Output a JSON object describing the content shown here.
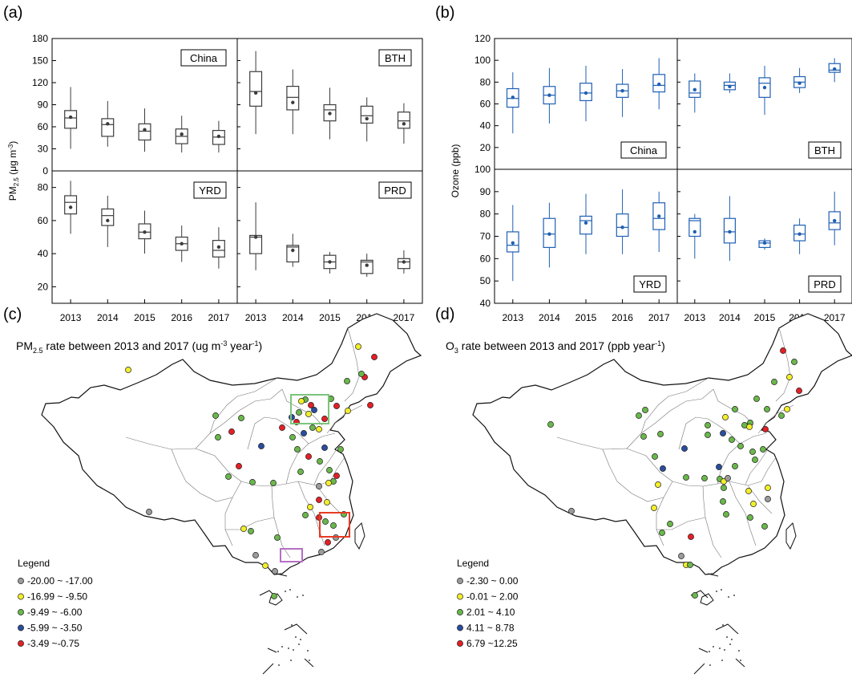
{
  "panel_labels": {
    "a": "(a)",
    "b": "(b)",
    "c": "(c)",
    "d": "(d)"
  },
  "years": [
    "2013",
    "2014",
    "2015",
    "2016",
    "2017"
  ],
  "colors": {
    "pm": "#3c3c3c",
    "ozone": "#1f5fb4",
    "grey": "#9b9b9b",
    "yellow": "#f2ee2a",
    "green": "#6ab74b",
    "blue": "#2a4e9e",
    "red": "#e41f26",
    "bth_box": "#7cc47c",
    "yrd_box": "#e83b24",
    "prd_box": "#b56fc6"
  },
  "chart_data": [
    {
      "type": "box",
      "panel": "(a)",
      "ylabel_main": "PM",
      "ylabel_sub": "2.5",
      "ylabel_unit": " (μg m",
      "ylabel_exp": "-3",
      "ylabel_close": ")",
      "subplots": [
        {
          "name": "China",
          "ylim": [
            0,
            180
          ],
          "ticks": [
            0,
            30,
            60,
            90,
            120,
            150,
            180
          ],
          "boxes": [
            {
              "whislo": 30,
              "q1": 58,
              "med": 72,
              "q3": 82,
              "whishi": 114,
              "mean": 73
            },
            {
              "whislo": 33,
              "q1": 47,
              "med": 63,
              "q3": 71,
              "whishi": 95,
              "mean": 64
            },
            {
              "whislo": 26,
              "q1": 42,
              "med": 54,
              "q3": 64,
              "whishi": 85,
              "mean": 56
            },
            {
              "whislo": 25,
              "q1": 37,
              "med": 47,
              "q3": 57,
              "whishi": 75,
              "mean": 50
            },
            {
              "whislo": 25,
              "q1": 36,
              "med": 46,
              "q3": 55,
              "whishi": 68,
              "mean": 47
            }
          ]
        },
        {
          "name": "BTH",
          "ylim": [
            0,
            180
          ],
          "ticks": [
            0,
            30,
            60,
            90,
            120,
            150,
            180
          ],
          "boxes": [
            {
              "whislo": 50,
              "q1": 88,
              "med": 108,
              "q3": 135,
              "whishi": 163,
              "mean": 106
            },
            {
              "whislo": 50,
              "q1": 83,
              "med": 100,
              "q3": 115,
              "whishi": 138,
              "mean": 93
            },
            {
              "whislo": 43,
              "q1": 68,
              "med": 83,
              "q3": 90,
              "whishi": 113,
              "mean": 78
            },
            {
              "whislo": 40,
              "q1": 65,
              "med": 75,
              "q3": 88,
              "whishi": 100,
              "mean": 71
            },
            {
              "whislo": 37,
              "q1": 58,
              "med": 68,
              "q3": 80,
              "whishi": 92,
              "mean": 64
            }
          ]
        },
        {
          "name": "YRD",
          "ylim": [
            10,
            90
          ],
          "ticks": [
            20,
            40,
            60,
            80
          ],
          "boxes": [
            {
              "whislo": 52,
              "q1": 64,
              "med": 71,
              "q3": 75,
              "whishi": 84,
              "mean": 68
            },
            {
              "whislo": 44,
              "q1": 57,
              "med": 63,
              "q3": 67,
              "whishi": 75,
              "mean": 60
            },
            {
              "whislo": 40,
              "q1": 49,
              "med": 53,
              "q3": 58,
              "whishi": 66,
              "mean": 53
            },
            {
              "whislo": 35,
              "q1": 42,
              "med": 46,
              "q3": 50,
              "whishi": 57,
              "mean": 46
            },
            {
              "whislo": 31,
              "q1": 38,
              "med": 42,
              "q3": 48,
              "whishi": 56,
              "mean": 44
            }
          ]
        },
        {
          "name": "PRD",
          "ylim": [
            10,
            90
          ],
          "ticks": [
            20,
            40,
            60,
            80
          ],
          "boxes": [
            {
              "whislo": 30,
              "q1": 40,
              "med": 50,
              "q3": 51,
              "whishi": 71,
              "mean": 50
            },
            {
              "whislo": 32,
              "q1": 35,
              "med": 44,
              "q3": 45,
              "whishi": 52,
              "mean": 42
            },
            {
              "whislo": 28,
              "q1": 31,
              "med": 35,
              "q3": 39,
              "whishi": 41,
              "mean": 35
            },
            {
              "whislo": 26,
              "q1": 28,
              "med": 35,
              "q3": 36,
              "whishi": 40,
              "mean": 33
            },
            {
              "whislo": 28,
              "q1": 31,
              "med": 35,
              "q3": 37,
              "whishi": 42,
              "mean": 35
            }
          ]
        }
      ]
    },
    {
      "type": "box",
      "panel": "(b)",
      "ylabel_main": "Ozone (ppb)",
      "subplots": [
        {
          "name": "China",
          "ylim": [
            0,
            120
          ],
          "ticks": [
            20,
            40,
            60,
            80,
            100,
            120
          ],
          "boxes": [
            {
              "whislo": 33,
              "q1": 57,
              "med": 65,
              "q3": 74,
              "whishi": 89,
              "mean": 66
            },
            {
              "whislo": 42,
              "q1": 60,
              "med": 68,
              "q3": 76,
              "whishi": 93,
              "mean": 68
            },
            {
              "whislo": 44,
              "q1": 63,
              "med": 70,
              "q3": 79,
              "whishi": 95,
              "mean": 70
            },
            {
              "whislo": 48,
              "q1": 66,
              "med": 72,
              "q3": 78,
              "whishi": 92,
              "mean": 72
            },
            {
              "whislo": 55,
              "q1": 71,
              "med": 77,
              "q3": 87,
              "whishi": 102,
              "mean": 78
            }
          ]
        },
        {
          "name": "BTH",
          "ylim": [
            0,
            120
          ],
          "ticks": [
            20,
            40,
            60,
            80,
            100,
            120
          ],
          "boxes": [
            {
              "whislo": 52,
              "q1": 66,
              "med": 70,
              "q3": 81,
              "whishi": 88,
              "mean": 73
            },
            {
              "whislo": 70,
              "q1": 73,
              "med": 77,
              "q3": 80,
              "whishi": 88,
              "mean": 76
            },
            {
              "whislo": 50,
              "q1": 66,
              "med": 79,
              "q3": 84,
              "whishi": 95,
              "mean": 75
            },
            {
              "whislo": 70,
              "q1": 75,
              "med": 80,
              "q3": 85,
              "whishi": 93,
              "mean": 79
            },
            {
              "whislo": 80,
              "q1": 89,
              "med": 91,
              "q3": 97,
              "whishi": 102,
              "mean": 92
            }
          ]
        },
        {
          "name": "YRD",
          "ylim": [
            40,
            100
          ],
          "ticks": [
            40,
            50,
            60,
            70,
            80,
            90,
            100
          ],
          "boxes": [
            {
              "whislo": 50,
              "q1": 63,
              "med": 66,
              "q3": 72,
              "whishi": 84,
              "mean": 67
            },
            {
              "whislo": 56,
              "q1": 65,
              "med": 71,
              "q3": 78,
              "whishi": 85,
              "mean": 71
            },
            {
              "whislo": 62,
              "q1": 71,
              "med": 77,
              "q3": 79,
              "whishi": 89,
              "mean": 76
            },
            {
              "whislo": 62,
              "q1": 70,
              "med": 74,
              "q3": 80,
              "whishi": 91,
              "mean": 74
            },
            {
              "whislo": 63,
              "q1": 73,
              "med": 78,
              "q3": 85,
              "whishi": 90,
              "mean": 79
            }
          ]
        },
        {
          "name": "PRD",
          "ylim": [
            40,
            100
          ],
          "ticks": [
            40,
            50,
            60,
            70,
            80,
            90,
            100
          ],
          "boxes": [
            {
              "whislo": 60,
              "q1": 70,
              "med": 77,
              "q3": 78,
              "whishi": 80,
              "mean": 72
            },
            {
              "whislo": 59,
              "q1": 67,
              "med": 72,
              "q3": 78,
              "whishi": 88,
              "mean": 72
            },
            {
              "whislo": 64,
              "q1": 65,
              "med": 67,
              "q3": 68,
              "whishi": 69,
              "mean": 67
            },
            {
              "whislo": 62,
              "q1": 68,
              "med": 71,
              "q3": 75,
              "whishi": 78,
              "mean": 71
            },
            {
              "whislo": 66,
              "q1": 73,
              "med": 76,
              "q3": 81,
              "whishi": 90,
              "mean": 77
            }
          ]
        }
      ]
    }
  ],
  "maps": [
    {
      "panel": "(c)",
      "title_pre": "PM",
      "title_sub": "2.5",
      "title_mid": " rate between 2013 and 2017 (ug m",
      "title_sup": "-3",
      "title_mid2": " year",
      "title_sup2": "-1",
      "title_end": ")",
      "legend_title": "Legend",
      "legend": [
        {
          "color": "grey",
          "label": "-20.00 ~ -17.00"
        },
        {
          "color": "yellow",
          "label": "-16.99 ~ -9.50"
        },
        {
          "color": "green",
          "label": "-9.49 ~ -6.00"
        },
        {
          "color": "blue",
          "label": "-5.99 ~ -3.50"
        },
        {
          "color": "red",
          "label": "-3.49 ~-0.75"
        }
      ]
    },
    {
      "panel": "(d)",
      "title_pre": "O",
      "title_sub": "3",
      "title_mid": " rate between 2013 and 2017 (ppb year",
      "title_sup": "-1",
      "title_mid2": "",
      "title_sup2": "",
      "title_end": ")",
      "legend_title": "Legend",
      "legend": [
        {
          "color": "grey",
          "label": "-2.30 ~ 0.00"
        },
        {
          "color": "yellow",
          "label": "-0.01 ~ 2.00"
        },
        {
          "color": "green",
          "label": "2.01 ~ 4.10"
        },
        {
          "color": "blue",
          "label": "4.11 ~ 8.78"
        },
        {
          "color": "red",
          "label": "6.79 ~12.25"
        }
      ]
    }
  ],
  "map_dots": {
    "c": [
      [
        "yellow",
        160,
        461
      ],
      [
        "grey",
        186,
        638
      ],
      [
        "green",
        269,
        518
      ],
      [
        "green",
        272,
        545
      ],
      [
        "red",
        289,
        538
      ],
      [
        "green",
        301,
        521
      ],
      [
        "red",
        298,
        581
      ],
      [
        "yellow",
        304,
        659
      ],
      [
        "green",
        313,
        662
      ],
      [
        "grey",
        319,
        692
      ],
      [
        "yellow",
        331,
        705
      ],
      [
        "green",
        285,
        594
      ],
      [
        "green",
        315,
        601
      ],
      [
        "blue",
        326,
        556
      ],
      [
        "green",
        341,
        602
      ],
      [
        "green",
        346,
        670
      ],
      [
        "grey",
        343,
        712
      ],
      [
        "green",
        342,
        743
      ],
      [
        "red",
        352,
        533
      ],
      [
        "green",
        365,
        545
      ],
      [
        "green",
        375,
        588
      ],
      [
        "red",
        385,
        569
      ],
      [
        "green",
        381,
        498
      ],
      [
        "red",
        388,
        505
      ],
      [
        "yellow",
        385,
        516
      ],
      [
        "green",
        373,
        514
      ],
      [
        "blue",
        392,
        511
      ],
      [
        "red",
        370,
        526
      ],
      [
        "blue",
        379,
        540
      ],
      [
        "yellow",
        387,
        632
      ],
      [
        "green",
        381,
        642
      ],
      [
        "red",
        398,
        623
      ],
      [
        "green",
        399,
        575
      ],
      [
        "grey",
        398,
        606
      ],
      [
        "yellow",
        398,
        535
      ],
      [
        "red",
        405,
        522
      ],
      [
        "green",
        413,
        497
      ],
      [
        "red",
        455,
        470
      ],
      [
        "yellow",
        434,
        512
      ],
      [
        "red",
        462,
        505
      ],
      [
        "green",
        433,
        475
      ],
      [
        "red",
        420,
        506
      ],
      [
        "green",
        416,
        600
      ],
      [
        "yellow",
        408,
        626
      ],
      [
        "green",
        406,
        650
      ],
      [
        "red",
        398,
        645
      ],
      [
        "grey",
        401,
        688
      ],
      [
        "red",
        409,
        676
      ],
      [
        "green",
        416,
        655
      ],
      [
        "grey",
        419,
        670
      ],
      [
        "red",
        420,
        593
      ],
      [
        "yellow",
        410,
        602
      ],
      [
        "blue",
        405,
        558
      ],
      [
        "green",
        411,
        586
      ],
      [
        "yellow",
        447,
        432
      ],
      [
        "red",
        467,
        445
      ],
      [
        "green",
        451,
        466
      ],
      [
        "green",
        425,
        560
      ],
      [
        "green",
        390,
        533
      ],
      [
        "yellow",
        376,
        500
      ],
      [
        "blue",
        364,
        520
      ],
      [
        "green",
        371,
        560
      ],
      [
        "green",
        429,
        641
      ]
    ],
    "d": [
      [
        "green",
        687,
        529
      ],
      [
        "grey",
        713,
        637
      ],
      [
        "green",
        797,
        518
      ],
      [
        "green",
        803,
        544
      ],
      [
        "green",
        805,
        511
      ],
      [
        "green",
        824,
        541
      ],
      [
        "green",
        817,
        569
      ],
      [
        "yellow",
        816,
        633
      ],
      [
        "green",
        836,
        653
      ],
      [
        "green",
        826,
        664
      ],
      [
        "grey",
        850,
        693
      ],
      [
        "yellow",
        856,
        704
      ],
      [
        "blue",
        827,
        584
      ],
      [
        "yellow",
        821,
        604
      ],
      [
        "blue",
        854,
        559
      ],
      [
        "green",
        856,
        595
      ],
      [
        "green",
        879,
        596
      ],
      [
        "red",
        862,
        669
      ],
      [
        "green",
        861,
        704
      ],
      [
        "green",
        867,
        742
      ],
      [
        "green",
        883,
        542
      ],
      [
        "green",
        883,
        530
      ],
      [
        "blue",
        897,
        582
      ],
      [
        "green",
        898,
        597
      ],
      [
        "yellow",
        903,
        600
      ],
      [
        "green",
        902,
        625
      ],
      [
        "grey",
        908,
        596
      ],
      [
        "green",
        903,
        608
      ],
      [
        "green",
        906,
        641
      ],
      [
        "yellow",
        934,
        612
      ],
      [
        "green",
        917,
        581
      ],
      [
        "green",
        917,
        510
      ],
      [
        "yellow",
        905,
        520
      ],
      [
        "blue",
        902,
        540
      ],
      [
        "green",
        913,
        548
      ],
      [
        "green",
        924,
        556
      ],
      [
        "green",
        929,
        530
      ],
      [
        "green",
        936,
        527
      ],
      [
        "green",
        944,
        497
      ],
      [
        "green",
        957,
        510
      ],
      [
        "yellow",
        935,
        532
      ],
      [
        "red",
        955,
        535
      ],
      [
        "yellow",
        958,
        608
      ],
      [
        "green",
        952,
        560
      ],
      [
        "green",
        975,
        518
      ],
      [
        "red",
        997,
        487
      ],
      [
        "yellow",
        985,
        470
      ],
      [
        "green",
        991,
        451
      ],
      [
        "red",
        977,
        437
      ],
      [
        "yellow",
        982,
        510
      ],
      [
        "green",
        966,
        476
      ],
      [
        "green",
        936,
        645
      ],
      [
        "green",
        954,
        656
      ],
      [
        "yellow",
        940,
        628
      ],
      [
        "grey",
        958,
        622
      ],
      [
        "green",
        942,
        573
      ],
      [
        "green",
        939,
        563
      ]
    ]
  }
}
